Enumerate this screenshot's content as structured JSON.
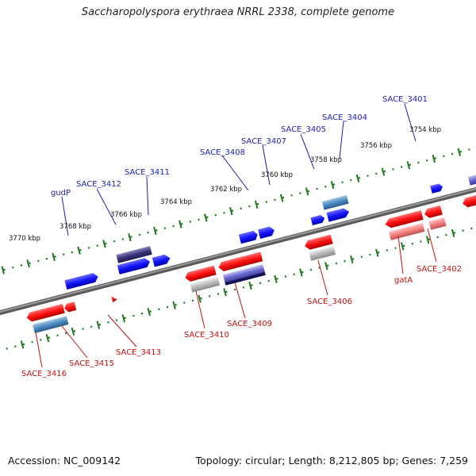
{
  "title": "Saccharopolyspora erythraea NRRL 2338, complete genome",
  "footer": {
    "accession": "Accession: NC_009142",
    "info": "Topology: circular; Length: 8,212,805 bp; Genes: 7,259"
  },
  "ruler_labels": [
    "3754 kbp",
    "3756 kbp",
    "3758 kbp",
    "3760 kbp",
    "3762 kbp",
    "3764 kbp",
    "3766 kbp",
    "3768 kbp",
    "3770 kbp"
  ],
  "top_gene_labels": [
    "SACE_3401",
    "SACE_3404",
    "SACE_3405",
    "SACE_3407",
    "SACE_3408",
    "SACE_3411",
    "SACE_3412",
    "gudP"
  ],
  "bottom_gene_labels": [
    "SACE_3402",
    "gatA",
    "SACE_3406",
    "SACE_3409",
    "SACE_3410",
    "SACE_3413",
    "SACE_3415",
    "SACE_3416"
  ],
  "colors": {
    "forward": "#1a1aff",
    "reverse": "#ee1111",
    "backbone": "#808080",
    "ticks": "#1a7a1a",
    "top_label": "#1c1cb0",
    "bottom_label": "#c41010"
  }
}
